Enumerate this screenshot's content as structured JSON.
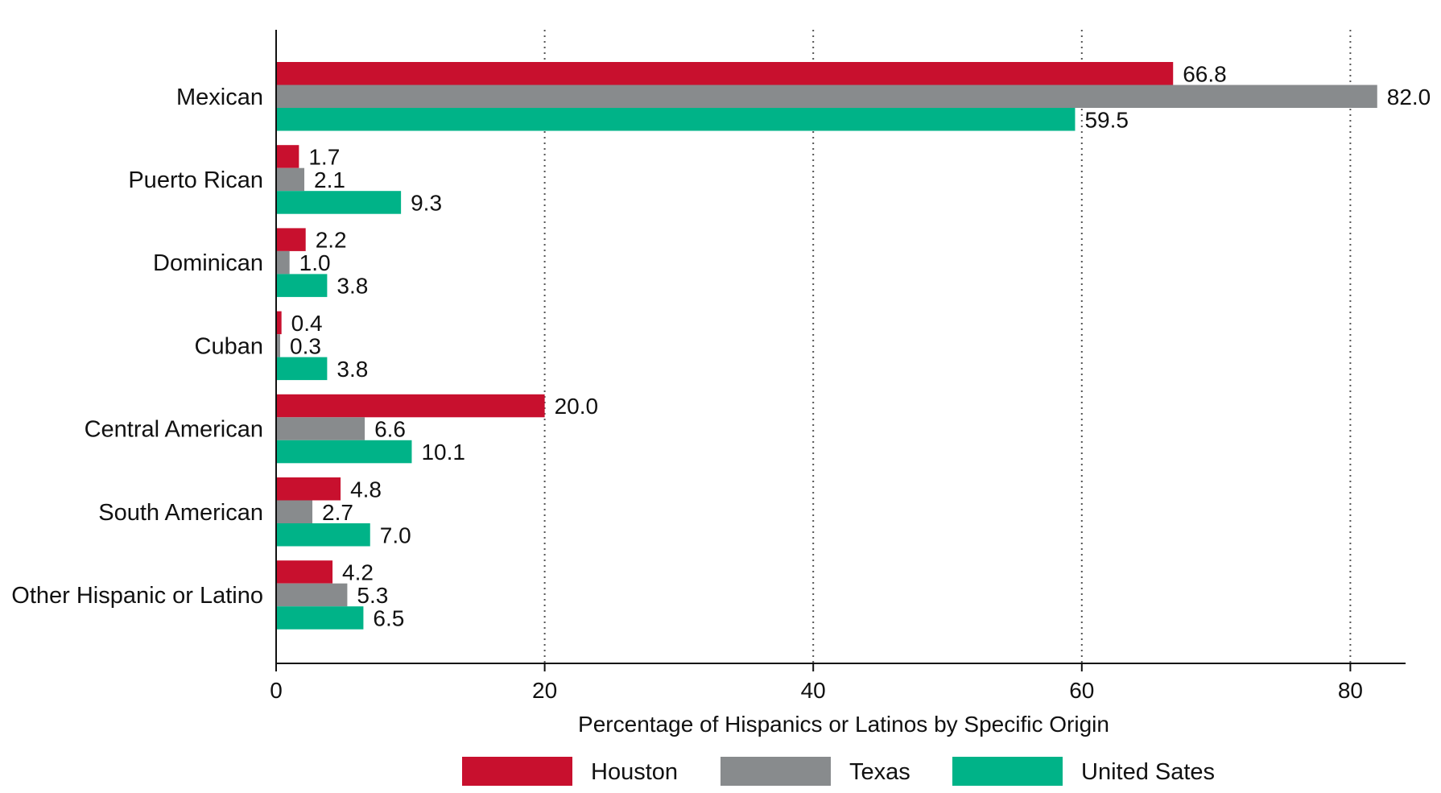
{
  "chart_data": {
    "type": "bar",
    "orientation": "horizontal",
    "categories": [
      "Mexican",
      "Puerto Rican",
      "Dominican",
      "Cuban",
      "Central American",
      "South American",
      "Other Hispanic or Latino"
    ],
    "series": [
      {
        "name": "Houston",
        "color": "#c8102e",
        "values": [
          66.8,
          1.7,
          2.2,
          0.4,
          20.0,
          4.8,
          4.2
        ]
      },
      {
        "name": "Texas",
        "color": "#888b8d",
        "values": [
          82.0,
          2.1,
          1.0,
          0.3,
          6.6,
          2.7,
          5.3
        ]
      },
      {
        "name": "United Sates",
        "color": "#00b388",
        "values": [
          59.5,
          9.3,
          3.8,
          3.8,
          10.1,
          7.0,
          6.5
        ]
      }
    ],
    "xlabel": "Percentage of Hispanics or Latinos by Specific Origin",
    "ylabel": "",
    "xlim": [
      0,
      84
    ],
    "xticks": [
      0,
      20,
      40,
      60,
      80
    ],
    "grid": "vertical dotted",
    "legend_position": "bottom"
  }
}
